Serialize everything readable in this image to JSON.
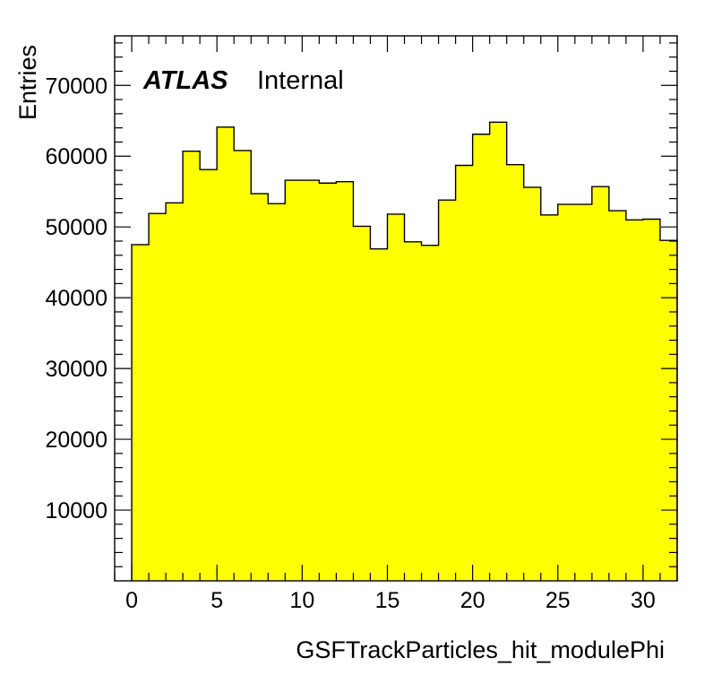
{
  "chart_data": {
    "type": "bar",
    "histogram": true,
    "xlabel": "GSFTrackParticles_hit_modulePhi",
    "ylabel": "Entries",
    "labels": {
      "atlas": "ATLAS",
      "status": "Internal"
    },
    "xlim": [
      -1,
      32
    ],
    "ylim": [
      0,
      77000
    ],
    "x_ticks": [
      0,
      5,
      10,
      15,
      20,
      25,
      30
    ],
    "y_ticks": [
      10000,
      20000,
      30000,
      40000,
      50000,
      60000,
      70000
    ],
    "bins": {
      "start": 0,
      "width": 1
    },
    "values": [
      47500,
      51900,
      53400,
      60700,
      58100,
      64100,
      60800,
      54700,
      53300,
      56600,
      56600,
      56200,
      56400,
      50100,
      46900,
      51800,
      47900,
      47400,
      53800,
      58700,
      63100,
      64800,
      58800,
      55600,
      51700,
      53200,
      53200,
      55700,
      52300,
      51000,
      51100,
      48100
    ],
    "fill_color": "#ffff00",
    "line_color": "#000000"
  }
}
